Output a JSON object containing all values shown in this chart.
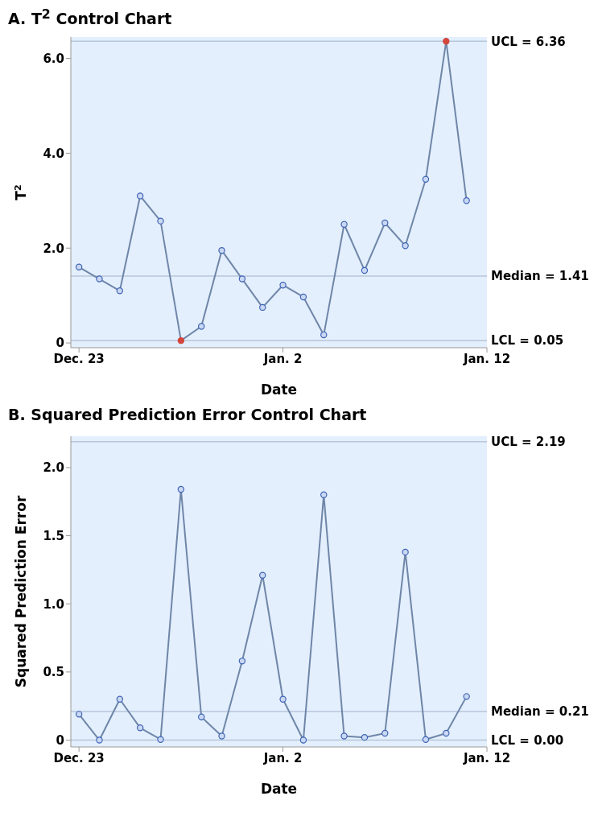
{
  "chart_data": [
    {
      "type": "line",
      "title": "A. T$^{2}$ Control Chart",
      "xlabel": "Date",
      "ylabel": "T$^{2}$",
      "categories": [
        "Dec. 23",
        null,
        null,
        null,
        null,
        null,
        null,
        null,
        null,
        null,
        "Jan. 2",
        null,
        null,
        null,
        null,
        null,
        null,
        null,
        null,
        null,
        "Jan. 12"
      ],
      "series": [
        {
          "color": "#6f86a8",
          "values": [
            1.6,
            1.35,
            1.1,
            3.1,
            2.57,
            0.05,
            0.35,
            1.95,
            1.35,
            0.75,
            1.22,
            0.97,
            0.17,
            2.5,
            1.53,
            2.53,
            2.05,
            3.45,
            6.36,
            3.0,
            null
          ],
          "colors": [
            "#3f63b5",
            "#3f63b5",
            "#3f63b5",
            "#3f63b5",
            "#3f63b5",
            "#d4463c",
            "#3f63b5",
            "#3f63b5",
            "#3f63b5",
            "#3f63b5",
            "#3f63b5",
            "#3f63b5",
            "#3f63b5",
            "#3f63b5",
            "#3f63b5",
            "#3f63b5",
            "#3f63b5",
            "#3f63b5",
            "#d4463c",
            "#3f63b5",
            "#3f63b5"
          ]
        }
      ],
      "marker": "circle",
      "line_style": "solid",
      "grid": false,
      "legend": false,
      "ylim": [
        -0.1,
        6.45
      ],
      "yticks": [
        0,
        {
          "value": 2,
          "label": "2.0"
        },
        {
          "value": 4,
          "label": "4.0"
        },
        {
          "value": 6,
          "label": "6.0"
        }
      ],
      "ref_lines": [
        {
          "axis": "y",
          "value": 6.36,
          "label": "UCL = 6.36",
          "color": "#b7c6d8"
        },
        {
          "axis": "y",
          "value": 1.41,
          "label": "Median = 1.41",
          "color": "#b7c6d8"
        },
        {
          "axis": "y",
          "value": 0.05,
          "label": "LCL = 0.05",
          "color": "#b7c6d8"
        }
      ]
    },
    {
      "type": "line",
      "title": "B. Squared Prediction Error Control Chart",
      "xlabel": "Date",
      "ylabel": "Squared Prediction Error",
      "categories": [
        "Dec. 23",
        null,
        null,
        null,
        null,
        null,
        null,
        null,
        null,
        null,
        "Jan. 2",
        null,
        null,
        null,
        null,
        null,
        null,
        null,
        null,
        null,
        "Jan. 12"
      ],
      "series": [
        {
          "color": "#6f86a8",
          "values": [
            0.19,
            0,
            0.3,
            0.09,
            0.005,
            1.84,
            0.17,
            0.03,
            0.58,
            1.21,
            0.3,
            0,
            1.8,
            0.03,
            0.02,
            0.05,
            1.38,
            0.005,
            0.05,
            0.32,
            null
          ],
          "colors": [
            "#3f63b5",
            "#3f63b5",
            "#3f63b5",
            "#3f63b5",
            "#3f63b5",
            "#3f63b5",
            "#3f63b5",
            "#3f63b5",
            "#3f63b5",
            "#3f63b5",
            "#3f63b5",
            "#3f63b5",
            "#3f63b5",
            "#3f63b5",
            "#3f63b5",
            "#3f63b5",
            "#3f63b5",
            "#3f63b5",
            "#3f63b5",
            "#3f63b5",
            "#3f63b5"
          ]
        }
      ],
      "marker": "circle",
      "line_style": "solid",
      "grid": false,
      "legend": false,
      "ylim": [
        -0.05,
        2.23
      ],
      "yticks": [
        0,
        {
          "value": 0.5,
          "label": "0.5"
        },
        {
          "value": 1,
          "label": "1.0"
        },
        {
          "value": 1.5,
          "label": "1.5"
        },
        {
          "value": 2,
          "label": "2.0"
        }
      ],
      "ref_lines": [
        {
          "axis": "y",
          "value": 2.19,
          "label": "UCL = 2.19",
          "color": "#b7c6d8"
        },
        {
          "axis": "y",
          "value": 0.21,
          "label": "Median = 0.21",
          "color": "#b7c6d8"
        },
        {
          "axis": "y",
          "value": 0,
          "label": "LCL = 0.00",
          "color": "#b7c6d8"
        }
      ]
    }
  ]
}
